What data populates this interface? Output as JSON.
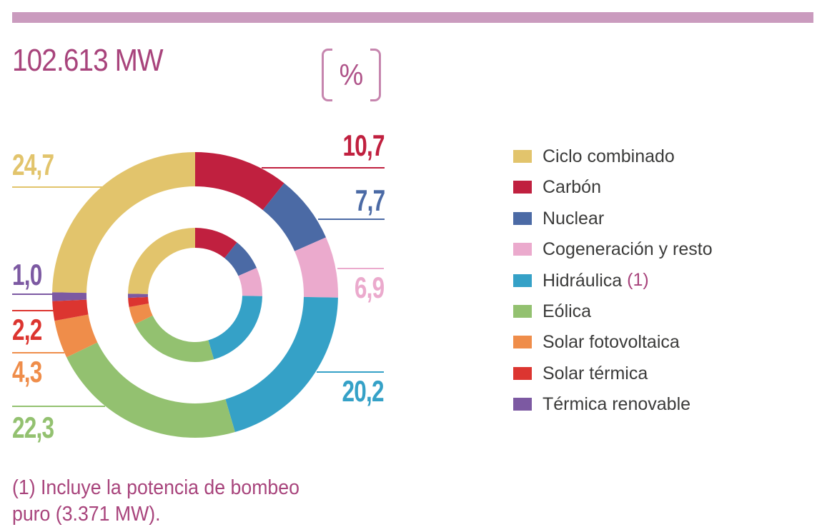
{
  "header": {
    "title": "102.613 MW",
    "unit_badge": "%"
  },
  "footnote": {
    "line1": "(1) Incluye la potencia de bombeo",
    "line2": "puro (3.371 MW)."
  },
  "colors": {
    "topbar": "#ca9bbe",
    "accent_magenta": "#a8447c",
    "badge_percent": "#af5389",
    "bracket_pink": "#c685ae",
    "legend_text": "#3b3b3a"
  },
  "chart_data": {
    "type": "donut",
    "title": "102.613 MW",
    "value_unit": "%",
    "start_angle_deg": 0,
    "direction": "clockwise",
    "rings": [
      "outer",
      "inner"
    ],
    "rings_note": "inner ring repeats the same percentages as the outer ring",
    "draw_order": [
      1,
      2,
      3,
      4,
      5,
      6,
      7,
      8,
      0
    ],
    "segments": [
      {
        "id": "ciclo-combinado",
        "label": "Ciclo combinado",
        "note": "",
        "value": 24.7,
        "display": "24,7",
        "color": "#e2c46c"
      },
      {
        "id": "carbon",
        "label": "Carbón",
        "note": "",
        "value": 10.7,
        "display": "10,7",
        "color": "#c0203f"
      },
      {
        "id": "nuclear",
        "label": "Nuclear",
        "note": "",
        "value": 7.7,
        "display": "7,7",
        "color": "#4b6aa5"
      },
      {
        "id": "cogeneracion",
        "label": "Cogeneración y resto",
        "note": "",
        "value": 6.9,
        "display": "6,9",
        "color": "#ebaacd"
      },
      {
        "id": "hidraulica",
        "label": "Hidráulica",
        "note": "(1)",
        "value": 20.2,
        "display": "20,2",
        "color": "#35a1c7"
      },
      {
        "id": "eolica",
        "label": "Eólica",
        "note": "",
        "value": 22.3,
        "display": "22,3",
        "color": "#93c170"
      },
      {
        "id": "solar-fotovoltaica",
        "label": "Solar fotovoltaica",
        "note": "",
        "value": 4.3,
        "display": "4,3",
        "color": "#ef8d4a"
      },
      {
        "id": "solar-termica",
        "label": "Solar térmica",
        "note": "",
        "value": 2.2,
        "display": "2,2",
        "color": "#dc3530"
      },
      {
        "id": "termica-renovable",
        "label": "Térmica renovable",
        "note": "",
        "value": 1.0,
        "display": "1,0",
        "color": "#7c59a2"
      }
    ]
  }
}
